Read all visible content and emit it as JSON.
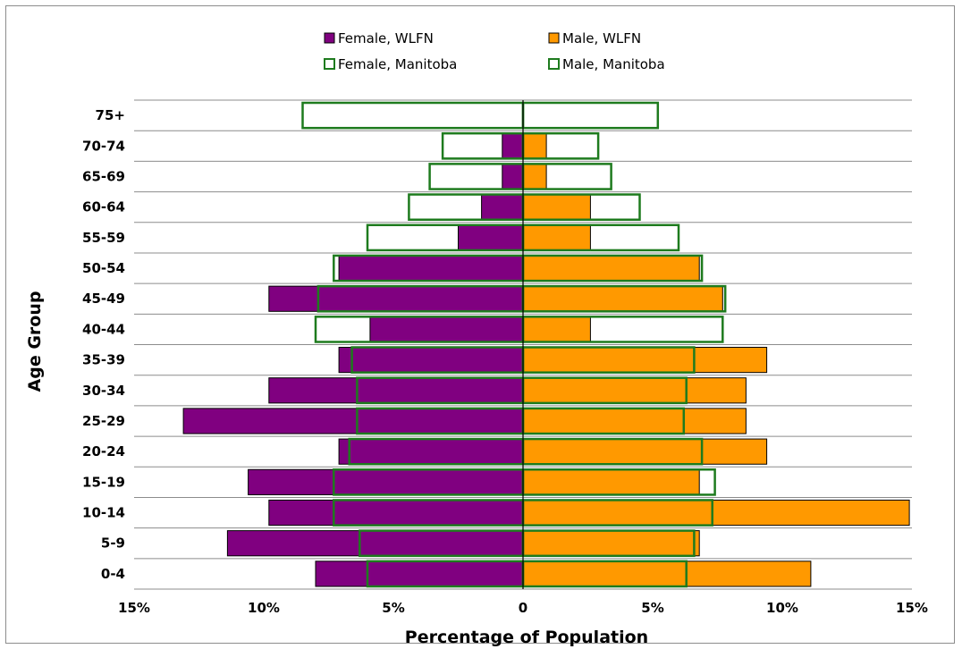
{
  "chart_data": {
    "type": "bar",
    "orientation": "horizontal-population-pyramid",
    "xlabel": "Percentage of Population",
    "ylabel": "Age Group",
    "xlim": [
      -15,
      15
    ],
    "x_ticks": [
      {
        "value": -15,
        "label": "15%"
      },
      {
        "value": -10,
        "label": "10%"
      },
      {
        "value": -5,
        "label": "5%"
      },
      {
        "value": 0,
        "label": "0"
      },
      {
        "value": 5,
        "label": "5%"
      },
      {
        "value": 10,
        "label": "10%"
      },
      {
        "value": 15,
        "label": "15%"
      }
    ],
    "categories": [
      "0-4",
      "5-9",
      "10-14",
      "15-19",
      "20-24",
      "25-29",
      "30-34",
      "35-39",
      "40-44",
      "45-49",
      "50-54",
      "55-59",
      "60-64",
      "65-69",
      "70-74",
      "75+"
    ],
    "grid": true,
    "legend": "top",
    "series": [
      {
        "name": "Female, WLFN",
        "side": "left",
        "style": "filled",
        "color": "#800080",
        "border": "#000000",
        "values": [
          8.0,
          11.4,
          9.8,
          10.6,
          7.1,
          13.1,
          9.8,
          7.1,
          5.9,
          9.8,
          7.1,
          2.5,
          1.6,
          0.8,
          0.8,
          0.0
        ]
      },
      {
        "name": "Male, WLFN",
        "side": "right",
        "style": "filled",
        "color": "#ff9900",
        "border": "#000000",
        "values": [
          11.1,
          6.8,
          14.9,
          6.8,
          9.4,
          8.6,
          8.6,
          9.4,
          2.6,
          7.7,
          6.8,
          2.6,
          2.6,
          0.9,
          0.9,
          0.0
        ]
      },
      {
        "name": "Female, Manitoba",
        "side": "left",
        "style": "outline",
        "color": "#1e7b1e",
        "values": [
          6.0,
          6.3,
          7.3,
          7.3,
          6.7,
          6.4,
          6.4,
          6.6,
          8.0,
          7.9,
          7.3,
          6.0,
          4.4,
          3.6,
          3.1,
          8.5
        ]
      },
      {
        "name": "Male, Manitoba",
        "side": "right",
        "style": "outline",
        "color": "#1e7b1e",
        "values": [
          6.3,
          6.6,
          7.3,
          7.4,
          6.9,
          6.2,
          6.3,
          6.6,
          7.7,
          7.8,
          6.9,
          6.0,
          4.5,
          3.4,
          2.9,
          5.2
        ]
      }
    ]
  }
}
